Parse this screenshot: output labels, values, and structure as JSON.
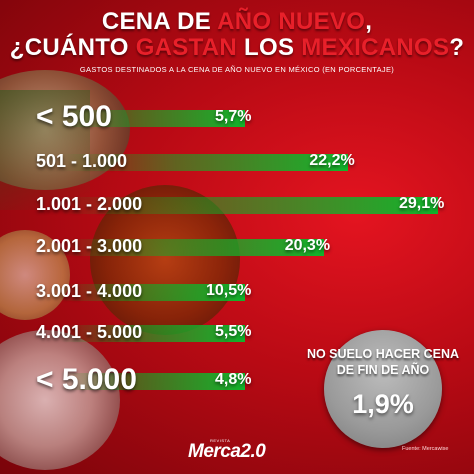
{
  "title": {
    "line1_pre": "CENA DE ",
    "line1_hl": "AÑO NUEVO",
    "line1_post": ",",
    "line2_pre": "¿CUÁNTO ",
    "line2_hl": "GASTAN",
    "line2_mid": " LOS ",
    "line2_hl2": "MEXICANOS",
    "line2_post": "?"
  },
  "subtitle": "GASTOS DESTINADOS A LA CENA DE AÑO NUEVO EN MÉXICO (EN PORCENTAJE)",
  "colors": {
    "highlight": "#e8202a",
    "bar": "#12b52c",
    "background": "#c50d17"
  },
  "chart_data": {
    "type": "bar",
    "orientation": "horizontal",
    "title": "CENA DE AÑO NUEVO, ¿CUÁNTO GASTAN LOS MEXICANOS?",
    "categories": [
      "< 500",
      "501 - 1.000",
      "1.001 - 2.000",
      "2.001 - 3.000",
      "3.001 - 4.000",
      "4.001 - 5.000",
      "< 5.000"
    ],
    "values": [
      5.7,
      22.2,
      29.1,
      20.3,
      10.5,
      5.5,
      4.8
    ],
    "value_labels": [
      "5,7%",
      "22,2%",
      "29,1%",
      "20,3%",
      "10,5%",
      "5,5%",
      "4,8%"
    ],
    "xlim": [
      0,
      29.1
    ],
    "grid": false,
    "legend": "none"
  },
  "note": {
    "label": "NO SUELO HACER CENA DE FIN DE AÑO",
    "value": "1,9%"
  },
  "source": "Fuente: Mercawise",
  "brand": {
    "name": "Merca2.0",
    "tag": "REVISTA"
  }
}
